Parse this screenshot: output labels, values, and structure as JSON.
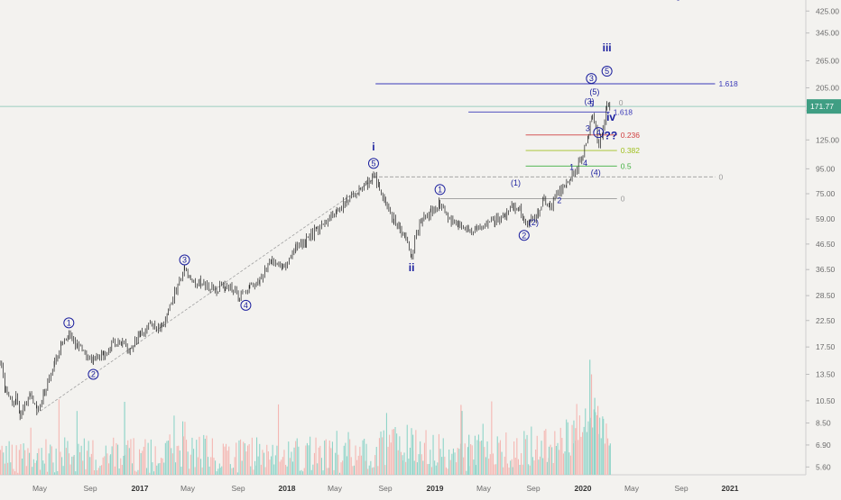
{
  "chart_data": {
    "type": "candlestick",
    "y_scale": "log",
    "ylim": [
      5.2,
      460
    ],
    "y_ticks": [
      "425.00",
      "345.00",
      "265.00",
      "205.00",
      "165.00",
      "125.00",
      "95.00",
      "75.00",
      "59.00",
      "46.50",
      "36.50",
      "28.50",
      "22.50",
      "17.50",
      "13.50",
      "10.50",
      "8.50",
      "6.90",
      "5.60"
    ],
    "y_tick_values": [
      425,
      345,
      265,
      205,
      165,
      125,
      95,
      75,
      59,
      46.5,
      36.5,
      28.5,
      22.5,
      17.5,
      13.5,
      10.5,
      8.5,
      6.9,
      5.6
    ],
    "x_ticks": [
      {
        "label": "May",
        "year": false
      },
      {
        "label": "Sep",
        "year": false
      },
      {
        "label": "2017",
        "year": true
      },
      {
        "label": "May",
        "year": false
      },
      {
        "label": "Sep",
        "year": false
      },
      {
        "label": "2018",
        "year": true
      },
      {
        "label": "May",
        "year": false
      },
      {
        "label": "Sep",
        "year": false
      },
      {
        "label": "2019",
        "year": true
      },
      {
        "label": "May",
        "year": false
      },
      {
        "label": "Sep",
        "year": false
      },
      {
        "label": "2020",
        "year": true
      },
      {
        "label": "May",
        "year": false
      },
      {
        "label": "Sep",
        "year": false
      },
      {
        "label": "2021",
        "year": true
      }
    ],
    "last_price": "171.77",
    "price_path": [
      [
        "2016-03-01",
        15.2
      ],
      [
        "2016-03-15",
        11.5
      ],
      [
        "2016-04-01",
        10.0
      ],
      [
        "2016-04-10",
        10.9
      ],
      [
        "2016-04-20",
        9.2
      ],
      [
        "2016-05-15",
        11.0
      ],
      [
        "2016-06-01",
        9.4
      ],
      [
        "2016-06-20",
        11.5
      ],
      [
        "2016-07-15",
        15.0
      ],
      [
        "2016-08-01",
        17.5
      ],
      [
        "2016-08-20",
        20.0
      ],
      [
        "2016-09-10",
        18.0
      ],
      [
        "2016-09-25",
        16.5
      ],
      [
        "2016-10-20",
        15.5
      ],
      [
        "2016-11-15",
        16.2
      ],
      [
        "2016-12-05",
        18.0
      ],
      [
        "2017-01-01",
        18.3
      ],
      [
        "2017-01-20",
        17.0
      ],
      [
        "2017-02-15",
        20.0
      ],
      [
        "2017-03-15",
        22.0
      ],
      [
        "2017-04-10",
        21.0
      ],
      [
        "2017-04-25",
        25.0
      ],
      [
        "2017-05-15",
        30.0
      ],
      [
        "2017-06-05",
        36.5
      ],
      [
        "2017-06-20",
        33.0
      ],
      [
        "2017-07-15",
        32.0
      ],
      [
        "2017-08-20",
        30.0
      ],
      [
        "2017-09-15",
        31.0
      ],
      [
        "2017-10-05",
        30.5
      ],
      [
        "2017-10-20",
        28.0
      ],
      [
        "2017-11-15",
        31.0
      ],
      [
        "2017-12-10",
        33.0
      ],
      [
        "2018-01-10",
        40.0
      ],
      [
        "2018-02-05",
        37.0
      ],
      [
        "2018-03-10",
        46.0
      ],
      [
        "2018-04-05",
        48.0
      ],
      [
        "2018-05-01",
        53.0
      ],
      [
        "2018-05-25",
        56.0
      ],
      [
        "2018-06-20",
        63.0
      ],
      [
        "2018-07-15",
        70.0
      ],
      [
        "2018-08-15",
        78.0
      ],
      [
        "2018-09-05",
        82.0
      ],
      [
        "2018-09-20",
        89.0
      ],
      [
        "2018-10-05",
        80.0
      ],
      [
        "2018-10-20",
        66.0
      ],
      [
        "2018-11-10",
        59.0
      ],
      [
        "2018-11-25",
        53.0
      ],
      [
        "2018-12-10",
        50.0
      ],
      [
        "2018-12-24",
        42.0
      ],
      [
        "2019-01-05",
        52.0
      ],
      [
        "2019-01-20",
        58.0
      ],
      [
        "2019-02-10",
        63.0
      ],
      [
        "2019-03-05",
        68.0
      ],
      [
        "2019-03-25",
        60.0
      ],
      [
        "2019-04-20",
        56.0
      ],
      [
        "2019-05-15",
        52.0
      ],
      [
        "2019-06-05",
        53.0
      ],
      [
        "2019-06-25",
        57.0
      ],
      [
        "2019-07-20",
        58.0
      ],
      [
        "2019-08-15",
        62.0
      ],
      [
        "2019-09-05",
        67.0
      ],
      [
        "2019-09-20",
        64.0
      ],
      [
        "2019-10-01",
        55.0
      ],
      [
        "2019-10-15",
        58.0
      ],
      [
        "2019-11-05",
        63.0
      ],
      [
        "2019-11-20",
        72.0
      ],
      [
        "2019-12-05",
        66.0
      ],
      [
        "2019-12-25",
        77.0
      ],
      [
        "2020-01-15",
        82.0
      ],
      [
        "2020-01-25",
        86.0
      ],
      [
        "2020-02-10",
        95.0
      ],
      [
        "2020-02-25",
        110.0
      ],
      [
        "2020-03-10",
        135.0
      ],
      [
        "2020-03-20",
        162.0
      ],
      [
        "2020-03-28",
        140.0
      ],
      [
        "2020-04-05",
        115.0
      ],
      [
        "2020-04-15",
        140.0
      ],
      [
        "2020-04-25",
        172.0
      ],
      [
        "2020-05-02",
        171.77
      ]
    ],
    "volume_path": [
      [
        "2016-03-01",
        6.4
      ],
      [
        "2016-06-01",
        6.1
      ],
      [
        "2016-09-01",
        6.3
      ],
      [
        "2016-12-01",
        6.5
      ],
      [
        "2017-03-01",
        6.2
      ],
      [
        "2017-06-01",
        6.6
      ],
      [
        "2017-09-01",
        6.2
      ],
      [
        "2017-12-01",
        6.3
      ],
      [
        "2018-03-01",
        6.4
      ],
      [
        "2018-06-01",
        6.2
      ],
      [
        "2018-09-01",
        6.5
      ],
      [
        "2018-12-01",
        7.0
      ],
      [
        "2019-03-01",
        6.5
      ],
      [
        "2019-06-01",
        6.4
      ],
      [
        "2019-09-01",
        6.6
      ],
      [
        "2019-12-01",
        6.8
      ],
      [
        "2020-02-01",
        7.5
      ],
      [
        "2020-03-15",
        9.5
      ],
      [
        "2020-04-15",
        8.0
      ],
      [
        "2020-05-02",
        7.2
      ]
    ],
    "volume_spikes": [
      [
        "2017-01-05",
        10.4
      ],
      [
        "2018-06-01",
        7.2
      ],
      [
        "2018-12-26",
        7.6
      ],
      [
        "2019-04-25",
        10.1
      ],
      [
        "2019-05-15",
        7.6
      ],
      [
        "2020-02-05",
        8.1
      ],
      [
        "2020-03-12",
        15.5
      ],
      [
        "2020-03-16",
        13.5
      ],
      [
        "2020-03-24",
        10.8
      ],
      [
        "2020-04-01",
        10.0
      ]
    ],
    "annotations": {
      "waves_small_circled": [
        {
          "label": "1",
          "date": "2016-08-20",
          "price": 22.0
        },
        {
          "label": "2",
          "date": "2016-10-20",
          "price": 13.5
        },
        {
          "label": "3",
          "date": "2017-06-05",
          "price": 40.0
        },
        {
          "label": "4",
          "date": "2017-11-05",
          "price": 26.0
        },
        {
          "label": "5",
          "date": "2018-09-20",
          "price": 100.0
        },
        {
          "label": "1",
          "date": "2019-03-05",
          "price": 78.0
        },
        {
          "label": "2",
          "date": "2019-10-01",
          "price": 50.5
        },
        {
          "label": "3",
          "date": "2020-03-17",
          "price": 224.0
        },
        {
          "label": "4",
          "date": "2020-04-04",
          "price": 134.0
        },
        {
          "label": "5",
          "date": "2020-04-25",
          "price": 240.0
        }
      ],
      "waves_roman": [
        {
          "label": "i",
          "date": "2018-09-20",
          "price": 113.0,
          "big": true
        },
        {
          "label": "ii",
          "date": "2018-12-24",
          "price": 36.0,
          "big": true
        },
        {
          "label": "iii",
          "date": "2020-04-25",
          "price": 290.0,
          "big": true
        },
        {
          "label": "iv",
          "date": "2020-05-05",
          "price": 150.0,
          "big": true
        },
        {
          "label": "v",
          "date": "2020-10-20",
          "price": 470.0,
          "big": true
        }
      ],
      "waves_plain": [
        {
          "label": "(1)",
          "date": "2019-09-10",
          "price": 81.0
        },
        {
          "label": "(2)",
          "date": "2019-10-25",
          "price": 55.5
        },
        {
          "label": "(3)",
          "date": "2020-03-12",
          "price": 176.0
        },
        {
          "label": "(4)",
          "date": "2020-03-28",
          "price": 89.5
        },
        {
          "label": "(5)",
          "date": "2020-03-25",
          "price": 192.0
        },
        {
          "label": "1",
          "date": "2020-01-28",
          "price": 94.0
        },
        {
          "label": "2",
          "date": "2019-12-28",
          "price": 68.5
        },
        {
          "label": "3",
          "date": "2020-03-08",
          "price": 136.0
        },
        {
          "label": "4",
          "date": "2020-03-02",
          "price": 98.0
        },
        {
          "label": "5",
          "date": "2020-03-18",
          "price": 171.0
        }
      ],
      "question": {
        "label": "??",
        "date": "2020-04-18",
        "price": 126.0
      },
      "hlines": [
        {
          "date_from": "2018-09-20",
          "date_to": "2021-01-20",
          "price": 88.0,
          "color": "#9a9a9a",
          "dashed": true,
          "label": "0"
        },
        {
          "date_from": "2019-03-05",
          "date_to": "2020-05-20",
          "price": 71.5,
          "color": "#9a9a9a",
          "dashed": false,
          "label": "0"
        },
        {
          "date_from": "2018-09-25",
          "date_to": "2021-01-20",
          "price": 213.0,
          "color": "#3a3ab8",
          "dashed": false,
          "label": "1.618"
        },
        {
          "date_from": "2019-05-15",
          "date_to": "2020-05-02",
          "price": 163.0,
          "color": "#3a3ab8",
          "dashed": false,
          "label": "1.618"
        },
        {
          "date_from": "2019-10-05",
          "date_to": "2020-05-20",
          "price": 131.0,
          "color": "#d04040",
          "dashed": false,
          "label": "0.236"
        },
        {
          "date_from": "2019-10-05",
          "date_to": "2020-05-20",
          "price": 113.0,
          "color": "#a0c020",
          "dashed": false,
          "label": "0.382"
        },
        {
          "date_from": "2019-10-05",
          "date_to": "2020-05-20",
          "price": 97.5,
          "color": "#40b040",
          "dashed": false,
          "label": "0.5"
        }
      ],
      "fib_zero_top": {
        "date": "2020-05-20",
        "price": 172.0,
        "label": "0"
      },
      "trendline": [
        [
          "2016-06-01",
          9.3
        ],
        [
          "2018-09-20",
          86.0
        ]
      ]
    }
  }
}
